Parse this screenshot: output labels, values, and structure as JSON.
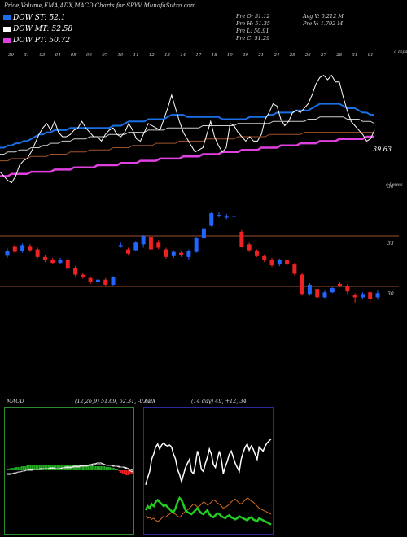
{
  "header": {
    "title": "Price,Volume,EMA,ADX,MACD Charts for SPYV MunafaSutra.com"
  },
  "legend": [
    {
      "label": "DOW ST: 52.1",
      "color": "#1a6fe6"
    },
    {
      "label": "DOW MT: 52.58",
      "color": "#ffffff"
    },
    {
      "label": "DOW PT: 50.72",
      "color": "#e040e0"
    }
  ],
  "stats": {
    "pre_o": "Pre   O: 51.12",
    "pre_h": "Pre   H: 51.35",
    "pre_l": "Pre   L: 50.91",
    "pre_c": "Pre   C: 51.29",
    "avg_v": "Avg V: 0.212  M",
    "pre_v": "Pre   V: 1.792  M"
  },
  "top_chart": {
    "x_ticks": [
      "30",
      "31",
      "03",
      "04",
      "05",
      "06",
      "07",
      "10",
      "11",
      "12",
      "13",
      "14",
      "17",
      "18",
      "19",
      "20",
      "21",
      "24",
      "25",
      "26",
      "27",
      "28",
      "31",
      "01"
    ],
    "tag_label": "c Topa",
    "price_label": "39.63",
    "colors": {
      "price": "#ffffff",
      "ema_st": "#1a6fe6",
      "ema_mt": "#cccccc",
      "ema_lt": "#a0522d",
      "ema_pt": "#e040e0"
    }
  },
  "candle_chart": {
    "axis_label": "c Lowes",
    "level_labels": [
      "36",
      "33",
      "30"
    ],
    "up_color": "#2266ff",
    "down_color": "#ee2222",
    "level_color": "#a0522d"
  },
  "macd": {
    "label": "MACD",
    "params": "(12,26,9) 51.69, 52.31, -0.62",
    "colors": {
      "frame": "#2f8a2f",
      "pos": "#22aa22",
      "neg": "#ee2222"
    }
  },
  "adx": {
    "label": "ADX",
    "params": "(14 day) 49, +12, 34",
    "colors": {
      "frame": "#2a2a99",
      "adx": "#ffffff",
      "plus_di": "#22cc22",
      "minus_di": "#d2691e"
    }
  },
  "chart_data": {
    "type": "candlestick",
    "title": "Price,Volume,EMA,ADX,MACD Charts for SPYV MunafaSutra.com",
    "candle_level_labels": [
      36,
      33,
      30
    ],
    "candles": [
      {
        "o": 31.82,
        "c": 32.1,
        "h": 32.25,
        "l": 31.7
      },
      {
        "o": 32.4,
        "c": 32.05,
        "h": 32.55,
        "l": 31.95
      },
      {
        "o": 32.1,
        "c": 32.45,
        "h": 32.55,
        "l": 32.0
      },
      {
        "o": 32.4,
        "c": 32.15,
        "h": 32.5,
        "l": 32.05
      },
      {
        "o": 32.2,
        "c": 31.75,
        "h": 32.3,
        "l": 31.65
      },
      {
        "o": 31.75,
        "c": 31.55,
        "h": 31.85,
        "l": 31.45
      },
      {
        "o": 31.6,
        "c": 31.4,
        "h": 31.7,
        "l": 31.3
      },
      {
        "o": 31.4,
        "c": 31.6,
        "h": 31.7,
        "l": 31.35
      },
      {
        "o": 31.55,
        "c": 31.05,
        "h": 31.7,
        "l": 30.95
      },
      {
        "o": 31.1,
        "c": 30.7,
        "h": 31.2,
        "l": 30.6
      },
      {
        "o": 30.7,
        "c": 30.55,
        "h": 30.8,
        "l": 30.45
      },
      {
        "o": 30.5,
        "c": 30.25,
        "h": 30.6,
        "l": 30.15
      },
      {
        "o": 30.25,
        "c": 30.4,
        "h": 30.45,
        "l": 30.15
      },
      {
        "o": 30.4,
        "c": 30.1,
        "h": 30.5,
        "l": 30.0
      },
      {
        "o": 30.1,
        "c": 30.55,
        "h": 30.6,
        "l": 30.05
      },
      {
        "o": 32.4,
        "c": 32.45,
        "h": 32.6,
        "l": 32.3
      },
      {
        "o": 32.2,
        "c": 31.95,
        "h": 32.3,
        "l": 31.85
      },
      {
        "o": 32.15,
        "c": 32.6,
        "h": 32.7,
        "l": 32.1
      },
      {
        "o": 32.5,
        "c": 33.0,
        "h": 33.05,
        "l": 32.3
      },
      {
        "o": 32.95,
        "c": 32.2,
        "h": 33.05,
        "l": 32.1
      },
      {
        "o": 32.6,
        "c": 32.3,
        "h": 32.75,
        "l": 32.2
      },
      {
        "o": 32.2,
        "c": 31.75,
        "h": 32.3,
        "l": 31.65
      },
      {
        "o": 31.8,
        "c": 32.05,
        "h": 32.15,
        "l": 31.7
      },
      {
        "o": 32.0,
        "c": 31.85,
        "h": 32.1,
        "l": 31.75
      },
      {
        "o": 31.75,
        "c": 32.1,
        "h": 32.2,
        "l": 31.6
      },
      {
        "o": 32.05,
        "c": 32.85,
        "h": 32.95,
        "l": 32.0
      },
      {
        "o": 32.85,
        "c": 33.45,
        "h": 33.5,
        "l": 32.8
      },
      {
        "o": 33.6,
        "c": 34.35,
        "h": 34.45,
        "l": 33.55
      },
      {
        "o": 34.2,
        "c": 34.25,
        "h": 34.4,
        "l": 34.1
      },
      {
        "o": 34.1,
        "c": 34.15,
        "h": 34.3,
        "l": 34.0
      },
      {
        "o": 34.2,
        "c": 34.2,
        "h": 34.3,
        "l": 34.1
      },
      {
        "o": 33.25,
        "c": 32.35,
        "h": 33.35,
        "l": 32.3
      },
      {
        "o": 32.5,
        "c": 32.15,
        "h": 32.6,
        "l": 32.05
      },
      {
        "o": 32.1,
        "c": 31.8,
        "h": 32.2,
        "l": 31.75
      },
      {
        "o": 31.8,
        "c": 31.55,
        "h": 31.9,
        "l": 31.45
      },
      {
        "o": 31.6,
        "c": 31.25,
        "h": 31.7,
        "l": 31.15
      },
      {
        "o": 31.3,
        "c": 31.55,
        "h": 31.65,
        "l": 31.2
      },
      {
        "o": 31.55,
        "c": 31.3,
        "h": 31.6,
        "l": 31.2
      },
      {
        "o": 31.3,
        "c": 30.75,
        "h": 31.4,
        "l": 30.65
      },
      {
        "o": 30.7,
        "c": 29.55,
        "h": 30.8,
        "l": 29.45
      },
      {
        "o": 29.55,
        "c": 30.1,
        "h": 30.2,
        "l": 29.45
      },
      {
        "o": 29.85,
        "c": 29.35,
        "h": 29.95,
        "l": 29.25
      },
      {
        "o": 29.35,
        "c": 29.65,
        "h": 29.75,
        "l": 29.3
      },
      {
        "o": 29.65,
        "c": 29.9,
        "h": 29.95,
        "l": 29.6
      },
      {
        "o": 30.15,
        "c": 30.05,
        "h": 30.25,
        "l": 29.95
      },
      {
        "o": 30.05,
        "c": 29.7,
        "h": 30.15,
        "l": 29.55
      },
      {
        "o": 29.5,
        "c": 29.35,
        "h": 29.6,
        "l": 29.0
      },
      {
        "o": 29.35,
        "c": 29.55,
        "h": 29.65,
        "l": 29.25
      },
      {
        "o": 29.65,
        "c": 29.25,
        "h": 29.75,
        "l": 29.0
      },
      {
        "o": 29.35,
        "c": 29.6,
        "h": 29.75,
        "l": 29.2
      }
    ],
    "price_series": [
      35,
      33,
      31,
      30,
      33,
      38,
      40,
      41,
      44,
      48,
      52,
      55,
      57,
      54,
      58,
      53,
      51,
      51,
      52,
      54,
      55,
      58,
      55,
      53,
      51,
      51,
      49,
      52,
      54,
      55,
      52,
      51,
      53,
      57,
      54,
      50,
      49,
      53,
      57,
      56,
      55,
      54,
      59,
      64,
      70,
      64,
      58,
      53,
      50,
      47,
      44,
      45,
      46,
      52,
      58,
      51,
      47,
      44,
      46,
      57,
      56,
      53,
      51,
      49,
      51,
      49,
      49,
      52,
      59,
      62,
      66,
      65,
      59,
      56,
      58,
      62,
      63,
      62,
      64,
      66,
      70,
      75,
      78,
      79,
      77,
      79,
      76,
      76,
      69,
      63,
      58,
      56,
      54,
      52,
      49,
      50,
      54
    ],
    "ema_st": [
      46,
      46,
      47,
      47,
      48,
      48,
      49,
      49,
      50,
      51,
      52,
      52,
      53,
      53,
      54,
      54,
      54,
      54,
      55,
      55,
      55,
      55,
      55,
      55,
      55,
      55,
      55,
      55,
      55,
      56,
      56,
      56,
      57,
      58,
      58,
      58,
      58,
      58,
      59,
      59,
      59,
      59,
      59,
      60,
      61,
      61,
      61,
      61,
      60,
      60,
      60,
      60,
      60,
      60,
      60,
      60,
      60,
      59,
      59,
      59,
      59,
      59,
      59,
      59,
      60,
      60,
      60,
      60,
      60,
      61,
      61,
      62,
      62,
      62,
      62,
      62,
      63,
      63,
      63,
      63,
      64,
      65,
      66,
      66,
      66,
      66,
      66,
      66,
      65,
      64,
      64,
      64,
      63,
      62,
      62,
      61,
      61
    ],
    "ema_mt": [
      43,
      43,
      44,
      44,
      44,
      45,
      45,
      45,
      46,
      46,
      46,
      47,
      47,
      48,
      48,
      48,
      49,
      49,
      49,
      50,
      50,
      50,
      50,
      51,
      51,
      51,
      51,
      51,
      52,
      52,
      52,
      52,
      52,
      53,
      53,
      53,
      53,
      53,
      54,
      54,
      54,
      54,
      54,
      55,
      55,
      55,
      55,
      55,
      55,
      55,
      55,
      55,
      56,
      56,
      56,
      56,
      56,
      56,
      56,
      56,
      56,
      57,
      57,
      57,
      57,
      57,
      57,
      57,
      57,
      57,
      58,
      58,
      58,
      58,
      58,
      58,
      58,
      58,
      58,
      59,
      59,
      59,
      60,
      60,
      60,
      60,
      60,
      60,
      60,
      59,
      59,
      59,
      59,
      58,
      58,
      58,
      57
    ],
    "ema_lt": [
      40,
      40,
      40,
      41,
      41,
      41,
      41,
      41,
      42,
      42,
      42,
      42,
      42,
      43,
      43,
      43,
      43,
      43,
      44,
      44,
      44,
      44,
      44,
      45,
      45,
      45,
      45,
      45,
      45,
      46,
      46,
      46,
      46,
      46,
      47,
      47,
      47,
      47,
      47,
      47,
      48,
      48,
      48,
      48,
      48,
      48,
      49,
      49,
      49,
      49,
      49,
      49,
      49,
      50,
      50,
      50,
      50,
      50,
      50,
      50,
      50,
      51,
      51,
      51,
      51,
      51,
      51,
      51,
      51,
      52,
      52,
      52,
      52,
      52,
      52,
      52,
      52,
      52,
      53,
      53,
      53,
      53,
      53,
      53,
      53,
      53,
      53,
      53,
      53,
      53,
      53,
      53,
      53,
      53,
      53,
      53,
      53
    ],
    "ema_pt": [
      33,
      33,
      33,
      34,
      34,
      34,
      34,
      34,
      35,
      35,
      35,
      35,
      35,
      35,
      36,
      36,
      36,
      36,
      36,
      37,
      37,
      37,
      37,
      37,
      37,
      38,
      38,
      38,
      38,
      38,
      38,
      39,
      39,
      39,
      39,
      39,
      40,
      40,
      40,
      40,
      40,
      41,
      41,
      41,
      41,
      41,
      41,
      42,
      42,
      42,
      42,
      42,
      43,
      43,
      43,
      43,
      43,
      44,
      44,
      44,
      44,
      44,
      45,
      45,
      45,
      45,
      45,
      46,
      46,
      46,
      46,
      46,
      47,
      47,
      47,
      47,
      47,
      48,
      48,
      48,
      48,
      48,
      49,
      49,
      49,
      49,
      49,
      50,
      50,
      50,
      50,
      50,
      50,
      50,
      51,
      51,
      51
    ],
    "macd_line": [
      34,
      34,
      34,
      35,
      35,
      36,
      37,
      37,
      38,
      38,
      39,
      39,
      40,
      40,
      40,
      40,
      40,
      41,
      41,
      41,
      41,
      41,
      42,
      42,
      42,
      41,
      41,
      41,
      42,
      42,
      43,
      43,
      43,
      43,
      44,
      44,
      44,
      44,
      45,
      45,
      45,
      45,
      46,
      46,
      47,
      47,
      48,
      48,
      48,
      47,
      46,
      45,
      45,
      45,
      44,
      44,
      44,
      43,
      43,
      43,
      42,
      41,
      40,
      38,
      37
    ],
    "macd_signal": [
      35,
      35,
      35,
      35,
      36,
      36,
      37,
      37,
      38,
      38,
      39,
      39,
      39,
      39,
      40,
      40,
      40,
      40,
      40,
      41,
      41,
      41,
      41,
      41,
      41,
      41,
      41,
      41,
      41,
      42,
      42,
      42,
      42,
      42,
      43,
      43,
      43,
      43,
      44,
      44,
      44,
      44,
      45,
      45,
      45,
      46,
      46,
      46,
      46,
      46,
      46,
      45,
      45,
      45,
      45,
      44,
      44,
      44,
      43,
      43,
      43,
      42,
      41,
      40,
      39
    ],
    "macd_hist": [
      2,
      2,
      3,
      3,
      3,
      4,
      4,
      4,
      5,
      5,
      5,
      6,
      6,
      6,
      6,
      7,
      7,
      7,
      7,
      7,
      7,
      7,
      7,
      7,
      7,
      7,
      7,
      7,
      7,
      7,
      7,
      7,
      7,
      7,
      7,
      6,
      6,
      6,
      6,
      6,
      6,
      6,
      6,
      6,
      6,
      6,
      6,
      6,
      5,
      5,
      5,
      5,
      5,
      5,
      5,
      4,
      4,
      4,
      3,
      3,
      2,
      1,
      -1,
      -3,
      -4,
      -5,
      -6,
      -6,
      -5,
      -5
    ],
    "adx_line": [
      45,
      52,
      58,
      70,
      75,
      82,
      85,
      80,
      84,
      86,
      84,
      83,
      84,
      82,
      75,
      70,
      60,
      55,
      48,
      55,
      62,
      66,
      70,
      58,
      56,
      65,
      78,
      72,
      60,
      58,
      66,
      72,
      80,
      75,
      65,
      62,
      70,
      78,
      70,
      56,
      63,
      68,
      75,
      78,
      72,
      66,
      62,
      58,
      70,
      77,
      82,
      85,
      79,
      83,
      80,
      75,
      70,
      82,
      80,
      78,
      83,
      86,
      88,
      90
    ],
    "plus_di": [
      20,
      24,
      22,
      26,
      24,
      28,
      30,
      28,
      26,
      24,
      25,
      23,
      21,
      19,
      18,
      22,
      28,
      32,
      30,
      25,
      20,
      18,
      17,
      16,
      18,
      20,
      22,
      19,
      17,
      16,
      18,
      20,
      16,
      14,
      13,
      15,
      17,
      16,
      14,
      13,
      12,
      14,
      15,
      13,
      12,
      11,
      12,
      14,
      13,
      12,
      11,
      10,
      12,
      13,
      11,
      10,
      9,
      12,
      11,
      10,
      9,
      8,
      7,
      6
    ],
    "minus_di": [
      14,
      12,
      13,
      11,
      12,
      10,
      9,
      10,
      12,
      14,
      13,
      15,
      16,
      18,
      17,
      16,
      14,
      13,
      15,
      17,
      19,
      20,
      22,
      24,
      26,
      25,
      23,
      24,
      26,
      28,
      27,
      25,
      26,
      28,
      30,
      29,
      27,
      26,
      24,
      22,
      23,
      24,
      26,
      28,
      30,
      31,
      29,
      27,
      26,
      28,
      30,
      32,
      31,
      29,
      28,
      26,
      24,
      22,
      21,
      20,
      19,
      18,
      17,
      16
    ]
  }
}
